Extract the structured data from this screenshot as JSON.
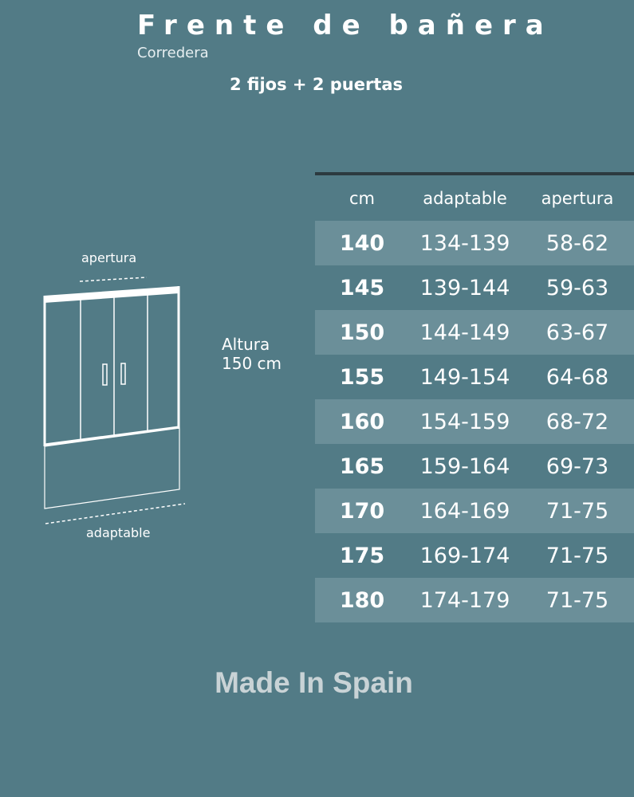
{
  "header": {
    "title": "Frente de bañera",
    "subtitle": "Corredera",
    "configuration": "2 fijos + 2 puertas"
  },
  "diagram": {
    "apertura_label": "apertura",
    "adaptable_label": "adaptable",
    "height_label": "Altura",
    "height_value": "150 cm"
  },
  "table": {
    "columns": [
      "cm",
      "adaptable",
      "apertura"
    ],
    "rows": [
      [
        "140",
        "134-139",
        "58-62"
      ],
      [
        "145",
        "139-144",
        "59-63"
      ],
      [
        "150",
        "144-149",
        "63-67"
      ],
      [
        "155",
        "149-154",
        "64-68"
      ],
      [
        "160",
        "154-159",
        "68-72"
      ],
      [
        "165",
        "159-164",
        "69-73"
      ],
      [
        "170",
        "164-169",
        "71-75"
      ],
      [
        "175",
        "169-174",
        "71-75"
      ],
      [
        "180",
        "174-179",
        "71-75"
      ]
    ]
  },
  "footer": {
    "text": "Made In Spain"
  },
  "colors": {
    "background": "#527b86",
    "stripe": "#6b8f99",
    "rule": "#2c3a3f"
  }
}
